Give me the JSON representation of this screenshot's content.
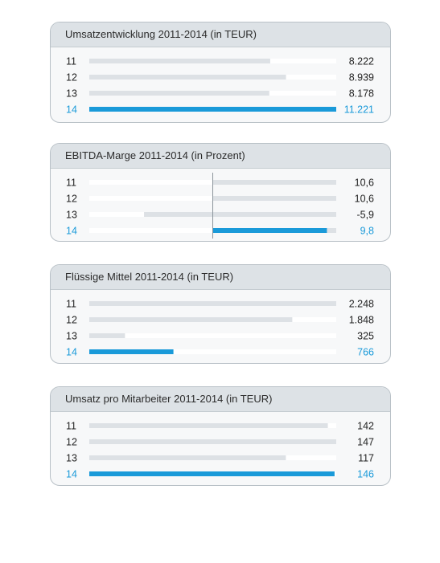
{
  "colors": {
    "track": "#dde1e5",
    "bar": "#dde1e5",
    "highlight": "#1a9ad9",
    "negative_track": "#ffffff",
    "axis": "#8c959c"
  },
  "chart_data": [
    {
      "type": "bar",
      "title": "Umsatzentwicklung 2011-2014 (in TEUR)",
      "categories": [
        "11",
        "12",
        "13",
        "14"
      ],
      "values": [
        8222,
        8939,
        8178,
        11221
      ],
      "value_labels": [
        "8.222",
        "8.939",
        "8.178",
        "11.221"
      ],
      "highlight_index": 3,
      "xlim": [
        0,
        11221
      ]
    },
    {
      "type": "bar",
      "title": "EBITDA-Marge 2011-2014 (in Prozent)",
      "categories": [
        "11",
        "12",
        "13",
        "14"
      ],
      "values": [
        10.6,
        10.6,
        -5.9,
        9.8
      ],
      "value_labels": [
        "10,6",
        "10,6",
        "-5,9",
        "9,8"
      ],
      "highlight_index": 3,
      "xlim": [
        -10.6,
        10.6
      ]
    },
    {
      "type": "bar",
      "title": "Flüssige Mittel 2011-2014 (in TEUR)",
      "categories": [
        "11",
        "12",
        "13",
        "14"
      ],
      "values": [
        2248,
        1848,
        325,
        766
      ],
      "value_labels": [
        "2.248",
        "1.848",
        "325",
        "766"
      ],
      "highlight_index": 3,
      "xlim": [
        0,
        2248
      ]
    },
    {
      "type": "bar",
      "title": "Umsatz pro Mitarbeiter 2011-2014 (in TEUR)",
      "categories": [
        "11",
        "12",
        "13",
        "14"
      ],
      "values": [
        142,
        147,
        117,
        146
      ],
      "value_labels": [
        "142",
        "147",
        "117",
        "146"
      ],
      "highlight_index": 3,
      "xlim": [
        0,
        147
      ]
    }
  ]
}
